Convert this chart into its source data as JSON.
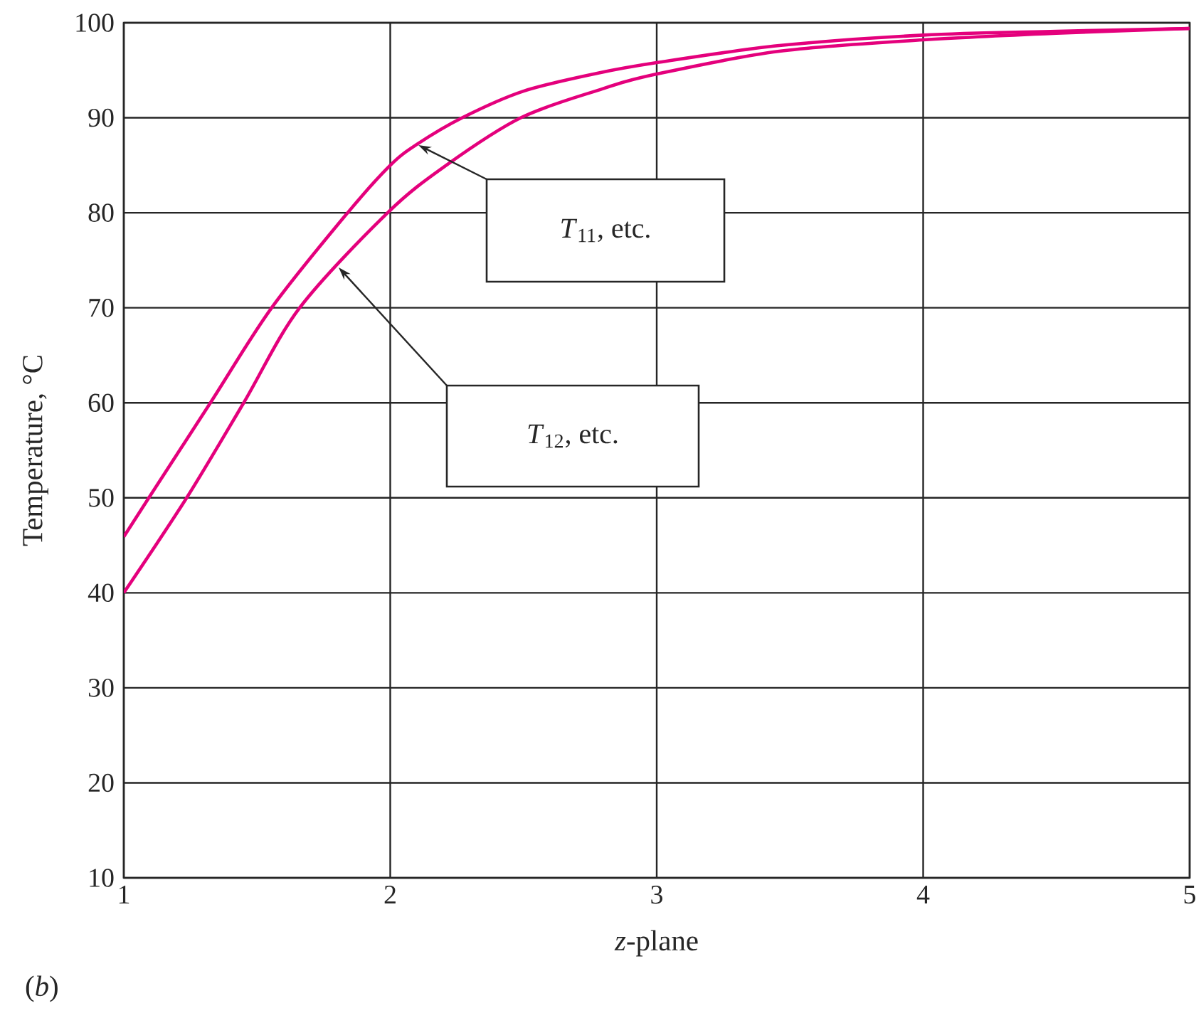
{
  "chart_data": {
    "type": "line",
    "xlabel": "*z*-plane",
    "ylabel": "Temperature, °C",
    "xlim": [
      1,
      5
    ],
    "ylim": [
      10,
      100
    ],
    "xticks": [
      1,
      2,
      3,
      4,
      5
    ],
    "yticks": [
      10,
      20,
      30,
      40,
      50,
      60,
      70,
      80,
      90,
      100
    ],
    "grid": true,
    "series": [
      {
        "color": "#e4007c",
        "x": [
          1.0,
          1.094,
          1.325,
          1.555,
          1.84,
          2.0,
          2.1,
          2.27,
          2.5,
          2.78,
          3.0,
          3.46,
          4.0,
          4.5,
          5.0
        ],
        "values": [
          45.9,
          50,
          60,
          70,
          80,
          85.0,
          87.2,
          90,
          92.8,
          94.7,
          95.8,
          97.6,
          98.7,
          99.1,
          99.4
        ]
      },
      {
        "color": "#e4007c",
        "x": [
          1.0,
          1.236,
          1.45,
          1.66,
          1.99,
          2.21,
          2.49,
          2.78,
          3.0,
          3.46,
          4.0,
          4.5,
          5.0
        ],
        "values": [
          40,
          50,
          60,
          70,
          80,
          85.0,
          90,
          92.9,
          94.6,
          97.0,
          98.2,
          98.9,
          99.4
        ]
      }
    ],
    "annotations": [
      "*T*$_{11}$, etc.",
      "*T*$_{12}$, etc.",
      "(*b*)"
    ]
  }
}
